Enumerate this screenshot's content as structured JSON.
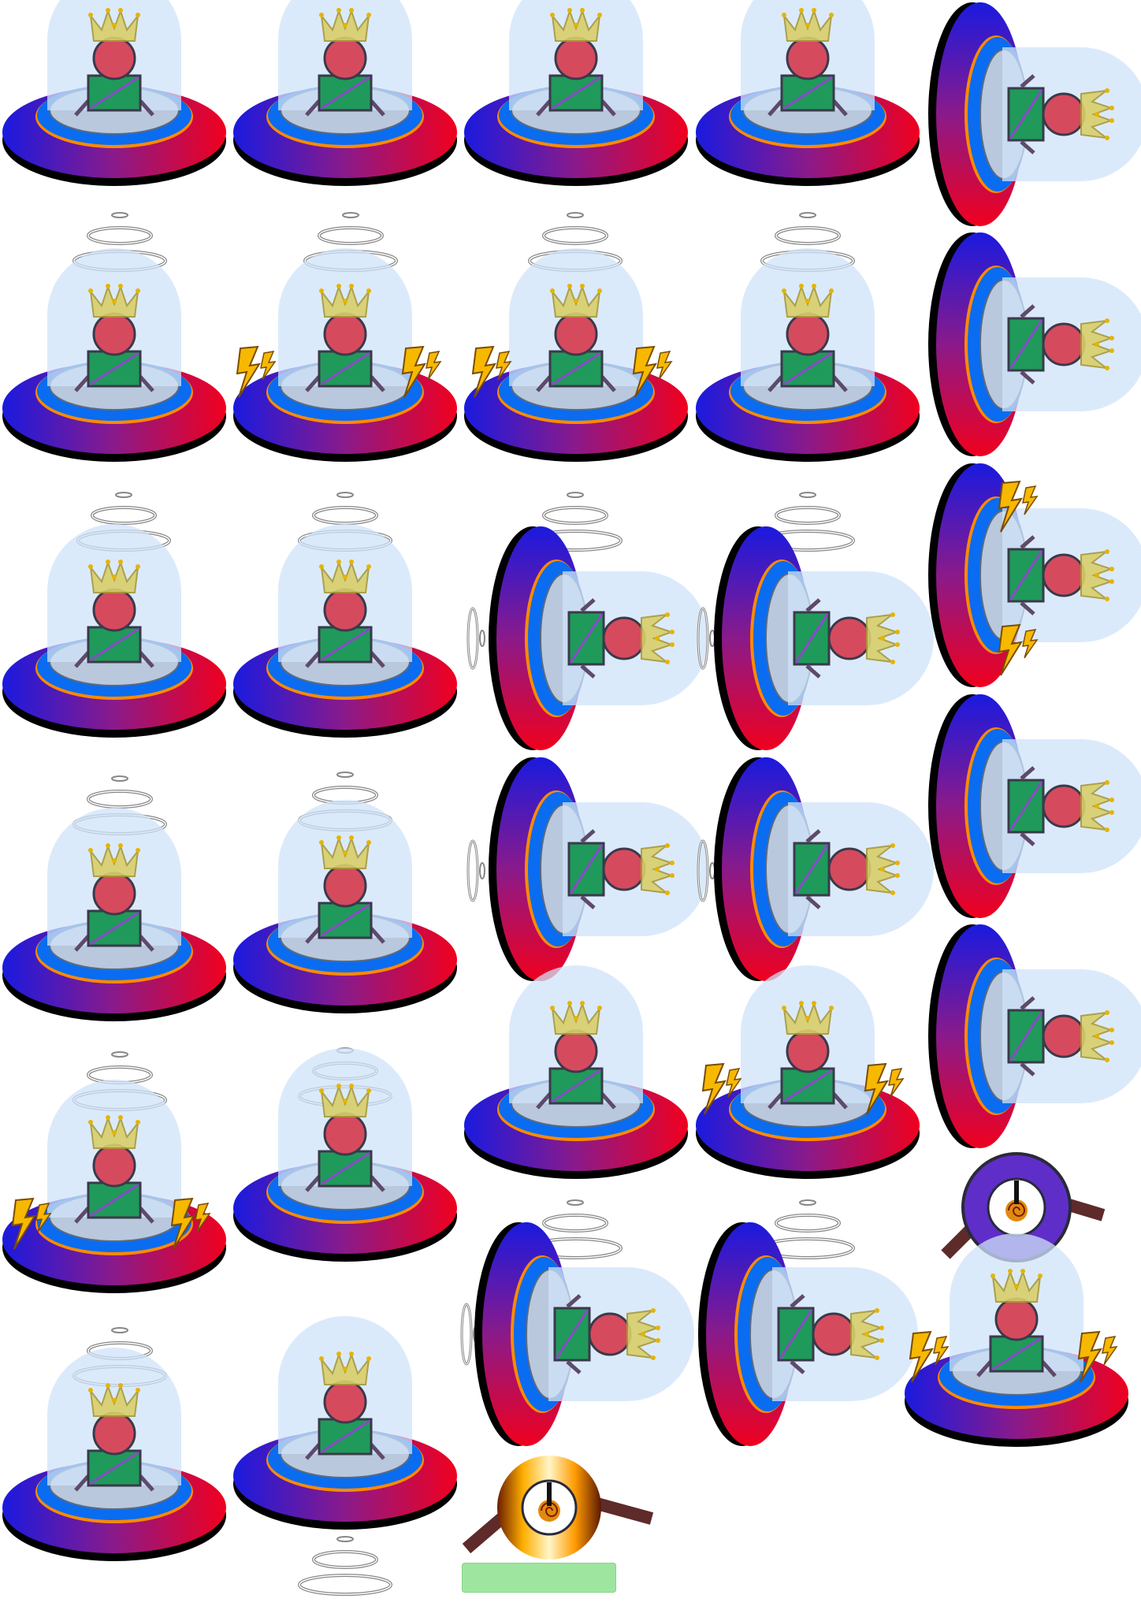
{
  "sheet": {
    "background": "#ffffff",
    "colors": {
      "saucer_left": "#1a1adf",
      "saucer_mid": "#8a1a8a",
      "saucer_right": "#f0001e",
      "saucer_shadow": "#000000",
      "ring_blue": "#0a6cf0",
      "ring_orange": "#ff8a00",
      "plate": "#b9c8dc",
      "dome": "#cfe3fa",
      "head": "#d64a5e",
      "body": "#1f9a5a",
      "crown": "#d8cf6a",
      "bolt": "#f7b800",
      "eye_ring": "#5f2ec8",
      "arm": "#5e2a2a",
      "bar": "#9ee6a0"
    },
    "icons": {
      "sprite": "ufo-robot-icon",
      "bolt": "lightning-bolt-icon",
      "rings": "tractor-beam-rings-icon",
      "eye": "spiral-eye-icon"
    }
  }
}
